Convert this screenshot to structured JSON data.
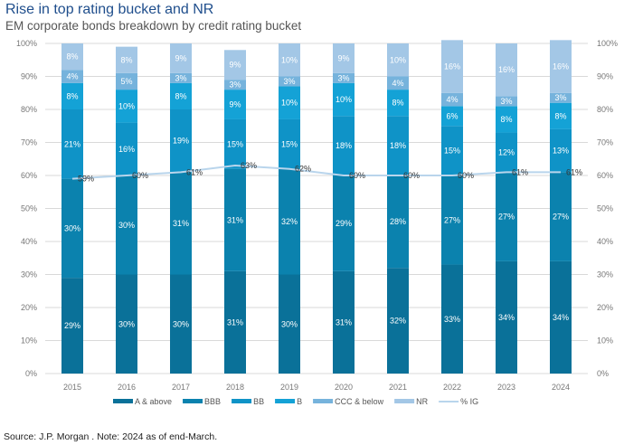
{
  "chart_data": {
    "type": "bar",
    "stacked": true,
    "title": "Rise in top rating bucket and NR",
    "subtitle": "EM corporate bonds breakdown by credit rating bucket",
    "source": "Source: J.P. Morgan . Note: 2024 as of end-March.",
    "categories": [
      "2015",
      "2016",
      "2017",
      "2018",
      "2019",
      "2020",
      "2021",
      "2022",
      "2023",
      "2024"
    ],
    "ylim": [
      0,
      100
    ],
    "yticks": [
      "0%",
      "10%",
      "20%",
      "30%",
      "40%",
      "50%",
      "60%",
      "70%",
      "80%",
      "90%",
      "100%"
    ],
    "grid": true,
    "legend_position": "bottom",
    "series": [
      {
        "name": "A & above",
        "color": "#0a7199",
        "values": [
          29,
          30,
          30,
          31,
          30,
          31,
          32,
          33,
          34,
          34
        ]
      },
      {
        "name": "BBB",
        "color": "#0b82ae",
        "values": [
          30,
          30,
          31,
          31,
          32,
          29,
          28,
          27,
          27,
          27
        ]
      },
      {
        "name": "BB",
        "color": "#0f93c7",
        "values": [
          21,
          16,
          19,
          15,
          15,
          18,
          18,
          15,
          12,
          13
        ]
      },
      {
        "name": "B",
        "color": "#14a2d6",
        "values": [
          8,
          10,
          8,
          9,
          10,
          10,
          8,
          6,
          8,
          8
        ]
      },
      {
        "name": "CCC & below",
        "color": "#76b3dc",
        "values": [
          4,
          5,
          3,
          3,
          3,
          3,
          4,
          4,
          3,
          3
        ]
      },
      {
        "name": "NR",
        "color": "#a3c7e6",
        "values": [
          8,
          8,
          9,
          9,
          10,
          9,
          10,
          16,
          16,
          16
        ]
      }
    ],
    "line_series": {
      "name": "% IG",
      "color": "#b9d5ec",
      "values": [
        59,
        60,
        61,
        63,
        62,
        60,
        60,
        60,
        61,
        61
      ]
    }
  }
}
